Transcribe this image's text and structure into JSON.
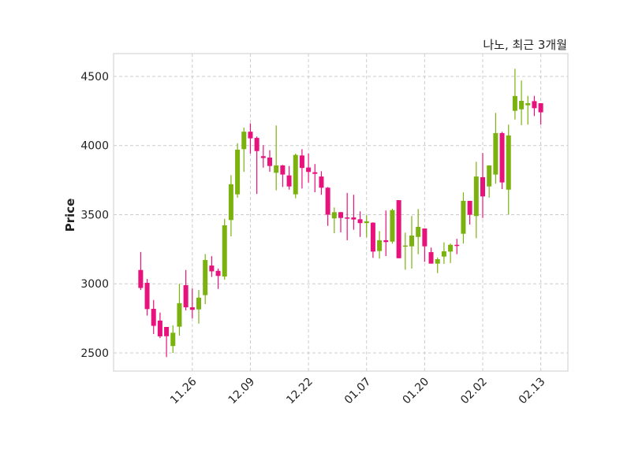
{
  "chart_data": {
    "type": "candlestick",
    "title": "나노, 최근 3개월",
    "xlabel": "",
    "ylabel": "Price",
    "ylim": [
      2369,
      4665
    ],
    "xlim": [
      -4.2,
      66.2
    ],
    "grid": true,
    "yticks": [
      2500,
      3000,
      3500,
      4000,
      4500
    ],
    "xticks": [
      {
        "index": 8,
        "label": "11.26"
      },
      {
        "index": 17,
        "label": "12.09"
      },
      {
        "index": 26,
        "label": "12.22"
      },
      {
        "index": 35,
        "label": "01.07"
      },
      {
        "index": 44,
        "label": "01.20"
      },
      {
        "index": 53,
        "label": "02.02"
      },
      {
        "index": 62,
        "label": "02.13"
      }
    ],
    "colors": {
      "up": "#7bb20f",
      "down": "#e8127c",
      "grid": "#cccccc",
      "frame": "#d5d5d5"
    },
    "ohlc_fields": [
      "open",
      "high",
      "low",
      "close"
    ],
    "ohlc": [
      [
        3100,
        3230,
        2955,
        2970
      ],
      [
        3007,
        3035,
        2770,
        2817
      ],
      [
        2819,
        2883,
        2637,
        2696
      ],
      [
        2734,
        2792,
        2607,
        2620
      ],
      [
        2688,
        2688,
        2470,
        2621
      ],
      [
        2550,
        2700,
        2500,
        2646
      ],
      [
        2690,
        3000,
        2625,
        2860
      ],
      [
        2990,
        3100,
        2808,
        2830
      ],
      [
        2830,
        2966,
        2750,
        2812
      ],
      [
        2815,
        2955,
        2712,
        2900
      ],
      [
        2918,
        3215,
        2853,
        3172
      ],
      [
        3132,
        3200,
        3050,
        3090
      ],
      [
        3094,
        3110,
        2963,
        3057
      ],
      [
        3053,
        3470,
        3030,
        3423
      ],
      [
        3461,
        3786,
        3343,
        3720
      ],
      [
        3647,
        4017,
        3623,
        3970
      ],
      [
        3974,
        4130,
        3810,
        4100
      ],
      [
        4100,
        4160,
        3942,
        4052
      ],
      [
        4055,
        4065,
        3650,
        3960
      ],
      [
        3923,
        4003,
        3840,
        3910
      ],
      [
        3913,
        3966,
        3810,
        3852
      ],
      [
        3803,
        4145,
        3676,
        3856
      ],
      [
        3856,
        3860,
        3700,
        3790
      ],
      [
        3784,
        3852,
        3681,
        3704
      ],
      [
        3647,
        3942,
        3619,
        3932
      ],
      [
        3928,
        3974,
        3689,
        3838
      ],
      [
        3841,
        3942,
        3732,
        3809
      ],
      [
        3807,
        3866,
        3662,
        3795
      ],
      [
        3776,
        3814,
        3644,
        3695
      ],
      [
        3695,
        3700,
        3419,
        3500
      ],
      [
        3473,
        3552,
        3366,
        3518
      ],
      [
        3518,
        3520,
        3372,
        3476
      ],
      [
        3480,
        3657,
        3315,
        3471
      ],
      [
        3480,
        3644,
        3391,
        3465
      ],
      [
        3467,
        3524,
        3339,
        3439
      ],
      [
        3439,
        3496,
        3337,
        3452
      ],
      [
        3442,
        3445,
        3188,
        3233
      ],
      [
        3237,
        3381,
        3182,
        3315
      ],
      [
        3315,
        3530,
        3201,
        3302
      ],
      [
        3305,
        3543,
        3290,
        3533
      ],
      [
        3605,
        3605,
        3185,
        3185
      ],
      [
        3272,
        3370,
        3102,
        3277
      ],
      [
        3271,
        3490,
        3110,
        3349
      ],
      [
        3339,
        3541,
        3214,
        3412
      ],
      [
        3400,
        3400,
        3159,
        3271
      ],
      [
        3229,
        3262,
        3146,
        3146
      ],
      [
        3146,
        3190,
        3077,
        3178
      ],
      [
        3197,
        3300,
        3144,
        3235
      ],
      [
        3233,
        3291,
        3150,
        3282
      ],
      [
        3282,
        3325,
        3214,
        3277
      ],
      [
        3362,
        3661,
        3291,
        3600
      ],
      [
        3600,
        3600,
        3429,
        3499
      ],
      [
        3490,
        3883,
        3330,
        3776
      ],
      [
        3771,
        3946,
        3476,
        3632
      ],
      [
        3704,
        3856,
        3623,
        3856
      ],
      [
        3790,
        4236,
        3724,
        4090
      ],
      [
        4090,
        4099,
        3685,
        3733
      ],
      [
        3681,
        4151,
        3501,
        4073
      ],
      [
        4251,
        4555,
        4188,
        4358
      ],
      [
        4262,
        4470,
        4147,
        4323
      ],
      [
        4291,
        4359,
        4151,
        4306
      ],
      [
        4321,
        4359,
        4213,
        4270
      ],
      [
        4306,
        4306,
        4151,
        4240
      ]
    ]
  }
}
